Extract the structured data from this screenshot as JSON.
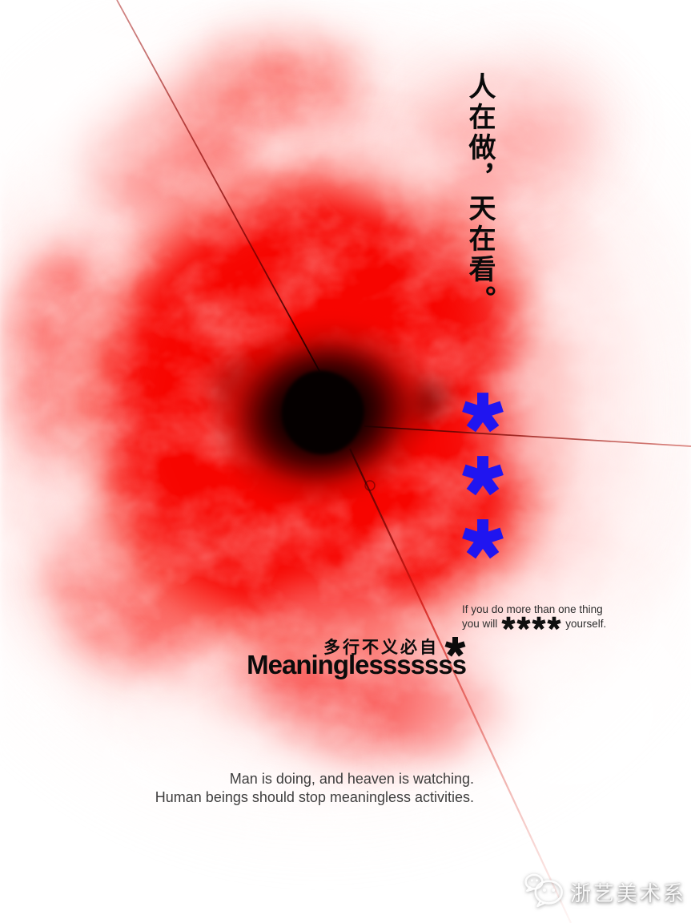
{
  "poster": {
    "title_vertical": "人在做，天在看。",
    "blue_asterisks_count": 3,
    "caption": {
      "line1": "If you do more than one thing",
      "line2_before": "you will",
      "line2_censored": "****",
      "line2_after": "yourself."
    },
    "slogan": {
      "chinese": "多行不义必自",
      "asterisk": "*",
      "english": "Meaninglesssssss"
    },
    "footer": {
      "line1": "Man is doing, and heaven is watching.",
      "line2": "Human beings should stop meaningless activities."
    },
    "watermark": {
      "label": "浙艺美术系",
      "icon": "wechat-icon"
    },
    "icons": {
      "asterisk": "asterisk-icon",
      "watermark_logo": "wechat-icon"
    },
    "colors": {
      "accent_blue": "#2015f0",
      "poster_red": "#f70500",
      "ink": "#0b0b0b",
      "caption_gray": "#2d2d2d",
      "footer_gray": "#3e3e3e"
    }
  }
}
